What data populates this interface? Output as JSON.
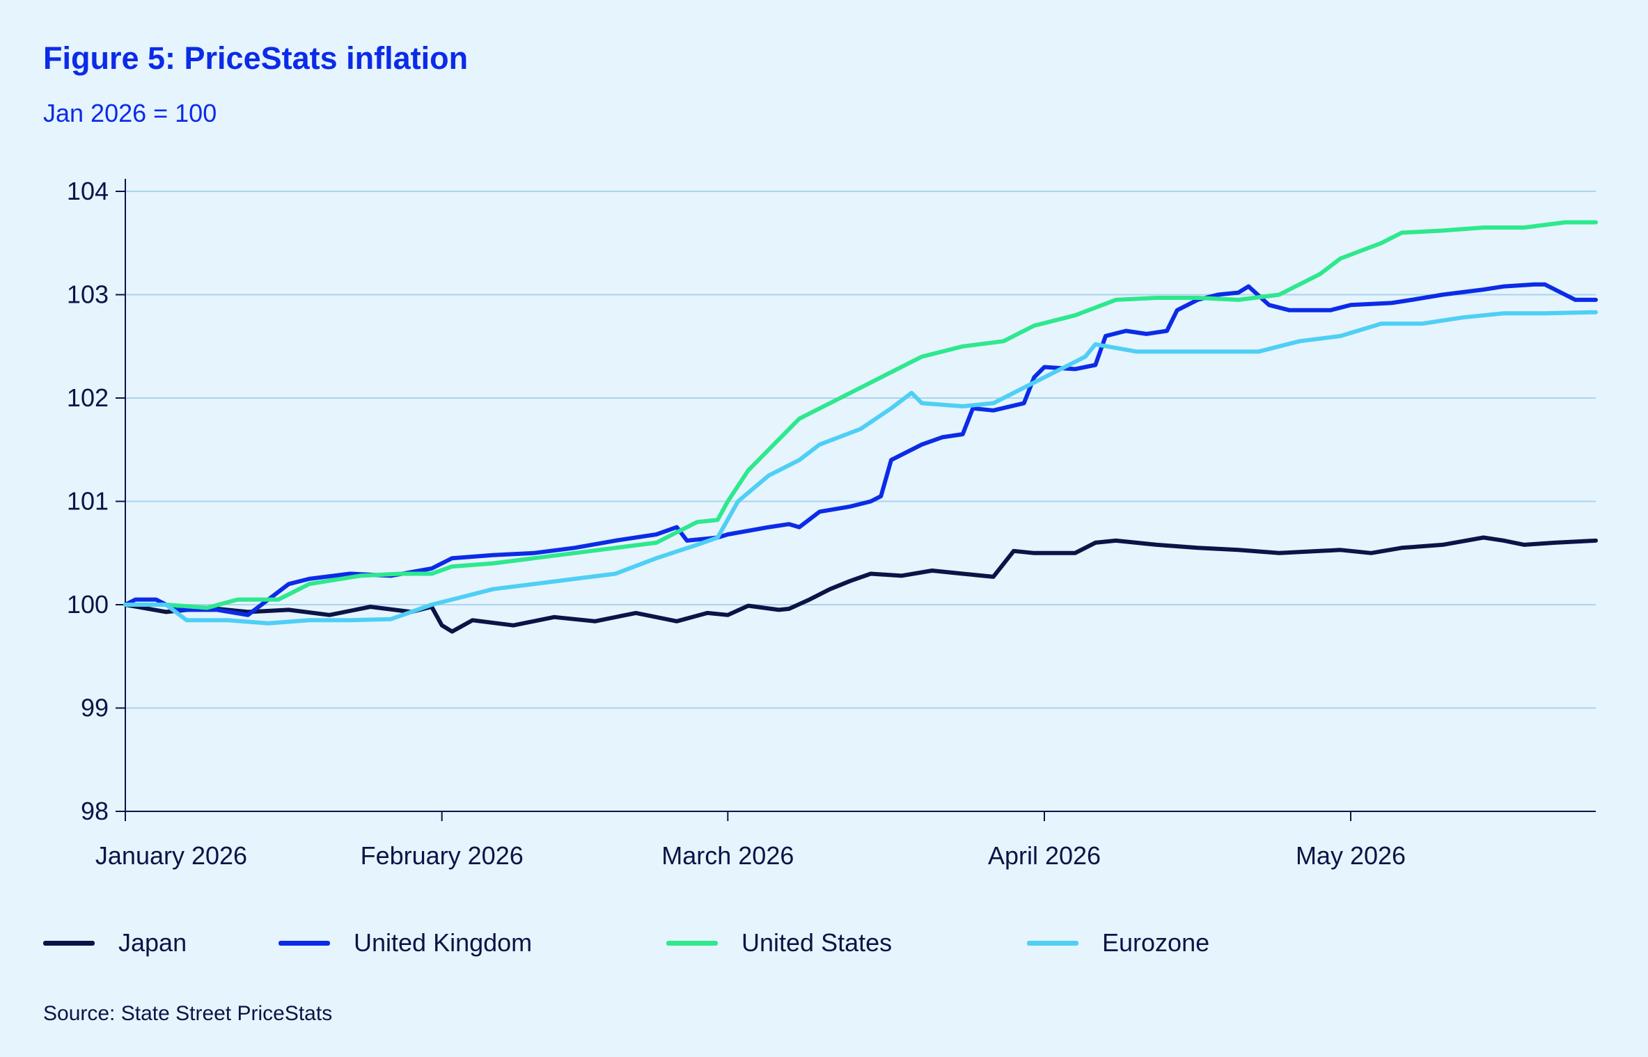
{
  "title": "Figure 5: PriceStats inflation",
  "subtitle": "Jan 2026 = 100",
  "source": "Source: State Street PriceStats",
  "colors": {
    "background": "#e6f4fd",
    "title": "#0b2be8",
    "text": "#0a1446",
    "grid": "#a9d4ee",
    "axis": "#0a1446"
  },
  "chart_data": {
    "type": "line",
    "title": "Figure 5: PriceStats inflation",
    "subtitle": "Jan 2026 = 100",
    "xlabel": "",
    "ylabel": "",
    "xlim": [
      "2026-01-01",
      "2026-05-25"
    ],
    "ylim": [
      98,
      104
    ],
    "yticks": [
      98,
      99,
      100,
      101,
      102,
      103,
      104
    ],
    "yticklabels": [
      "98",
      "99",
      "100",
      "101",
      "102",
      "103",
      "104"
    ],
    "xticks": [
      "2026-01-01",
      "2026-02-01",
      "2026-03-01",
      "2026-04-01",
      "2026-05-01"
    ],
    "xticklabels": [
      "January 2026",
      "February 2026",
      "March 2026",
      "April 2026",
      "May 2026"
    ],
    "grid": true,
    "legend_position": "bottom",
    "series": [
      {
        "name": "Japan",
        "color": "#0a1446",
        "points": [
          [
            "2026-01-01",
            100.0
          ],
          [
            "2026-01-05",
            99.93
          ],
          [
            "2026-01-09",
            99.97
          ],
          [
            "2026-01-13",
            99.93
          ],
          [
            "2026-01-17",
            99.95
          ],
          [
            "2026-01-21",
            99.9
          ],
          [
            "2026-01-25",
            99.98
          ],
          [
            "2026-01-29",
            99.93
          ],
          [
            "2026-01-31",
            99.98
          ],
          [
            "2026-02-01",
            99.8
          ],
          [
            "2026-02-02",
            99.74
          ],
          [
            "2026-02-04",
            99.85
          ],
          [
            "2026-02-08",
            99.8
          ],
          [
            "2026-02-12",
            99.88
          ],
          [
            "2026-02-16",
            99.84
          ],
          [
            "2026-02-20",
            99.92
          ],
          [
            "2026-02-24",
            99.84
          ],
          [
            "2026-02-27",
            99.92
          ],
          [
            "2026-03-01",
            99.9
          ],
          [
            "2026-03-03",
            99.99
          ],
          [
            "2026-03-06",
            99.95
          ],
          [
            "2026-03-07",
            99.96
          ],
          [
            "2026-03-09",
            100.05
          ],
          [
            "2026-03-11",
            100.15
          ],
          [
            "2026-03-13",
            100.23
          ],
          [
            "2026-03-15",
            100.3
          ],
          [
            "2026-03-18",
            100.28
          ],
          [
            "2026-03-21",
            100.33
          ],
          [
            "2026-03-24",
            100.3
          ],
          [
            "2026-03-27",
            100.27
          ],
          [
            "2026-03-29",
            100.52
          ],
          [
            "2026-03-31",
            100.5
          ],
          [
            "2026-04-04",
            100.5
          ],
          [
            "2026-04-06",
            100.6
          ],
          [
            "2026-04-08",
            100.62
          ],
          [
            "2026-04-12",
            100.58
          ],
          [
            "2026-04-16",
            100.55
          ],
          [
            "2026-04-20",
            100.53
          ],
          [
            "2026-04-24",
            100.5
          ],
          [
            "2026-04-28",
            100.52
          ],
          [
            "2026-04-30",
            100.53
          ],
          [
            "2026-05-03",
            100.5
          ],
          [
            "2026-05-06",
            100.55
          ],
          [
            "2026-05-10",
            100.58
          ],
          [
            "2026-05-14",
            100.65
          ],
          [
            "2026-05-16",
            100.62
          ],
          [
            "2026-05-18",
            100.58
          ],
          [
            "2026-05-21",
            100.6
          ],
          [
            "2026-05-25",
            100.62
          ]
        ]
      },
      {
        "name": "United Kingdom",
        "color": "#0b2be8",
        "points": [
          [
            "2026-01-01",
            100.0
          ],
          [
            "2026-01-02",
            100.05
          ],
          [
            "2026-01-04",
            100.05
          ],
          [
            "2026-01-06",
            99.95
          ],
          [
            "2026-01-10",
            99.95
          ],
          [
            "2026-01-13",
            99.9
          ],
          [
            "2026-01-15",
            100.05
          ],
          [
            "2026-01-17",
            100.2
          ],
          [
            "2026-01-19",
            100.25
          ],
          [
            "2026-01-23",
            100.3
          ],
          [
            "2026-01-27",
            100.28
          ],
          [
            "2026-01-31",
            100.35
          ],
          [
            "2026-02-01",
            100.4
          ],
          [
            "2026-02-02",
            100.45
          ],
          [
            "2026-02-06",
            100.48
          ],
          [
            "2026-02-10",
            100.5
          ],
          [
            "2026-02-14",
            100.55
          ],
          [
            "2026-02-18",
            100.62
          ],
          [
            "2026-02-22",
            100.68
          ],
          [
            "2026-02-24",
            100.75
          ],
          [
            "2026-02-25",
            100.62
          ],
          [
            "2026-02-28",
            100.65
          ],
          [
            "2026-03-01",
            100.68
          ],
          [
            "2026-03-05",
            100.75
          ],
          [
            "2026-03-07",
            100.78
          ],
          [
            "2026-03-08",
            100.75
          ],
          [
            "2026-03-10",
            100.9
          ],
          [
            "2026-03-13",
            100.95
          ],
          [
            "2026-03-15",
            101.0
          ],
          [
            "2026-03-16",
            101.05
          ],
          [
            "2026-03-17",
            101.4
          ],
          [
            "2026-03-20",
            101.55
          ],
          [
            "2026-03-22",
            101.62
          ],
          [
            "2026-03-24",
            101.65
          ],
          [
            "2026-03-25",
            101.9
          ],
          [
            "2026-03-27",
            101.88
          ],
          [
            "2026-03-30",
            101.95
          ],
          [
            "2026-03-31",
            102.2
          ],
          [
            "2026-04-01",
            102.3
          ],
          [
            "2026-04-04",
            102.28
          ],
          [
            "2026-04-06",
            102.32
          ],
          [
            "2026-04-07",
            102.6
          ],
          [
            "2026-04-09",
            102.65
          ],
          [
            "2026-04-11",
            102.62
          ],
          [
            "2026-04-13",
            102.65
          ],
          [
            "2026-04-14",
            102.85
          ],
          [
            "2026-04-16",
            102.95
          ],
          [
            "2026-04-18",
            103.0
          ],
          [
            "2026-04-20",
            103.02
          ],
          [
            "2026-04-21",
            103.08
          ],
          [
            "2026-04-23",
            102.9
          ],
          [
            "2026-04-25",
            102.85
          ],
          [
            "2026-04-29",
            102.85
          ],
          [
            "2026-05-01",
            102.9
          ],
          [
            "2026-05-05",
            102.92
          ],
          [
            "2026-05-07",
            102.95
          ],
          [
            "2026-05-10",
            103.0
          ],
          [
            "2026-05-14",
            103.05
          ],
          [
            "2026-05-16",
            103.08
          ],
          [
            "2026-05-19",
            103.1
          ],
          [
            "2026-05-20",
            103.1
          ],
          [
            "2026-05-22",
            103.0
          ],
          [
            "2026-05-23",
            102.95
          ],
          [
            "2026-05-25",
            102.95
          ]
        ]
      },
      {
        "name": "United States",
        "color": "#2ee88e",
        "points": [
          [
            "2026-01-01",
            100.0
          ],
          [
            "2026-01-05",
            100.0
          ],
          [
            "2026-01-09",
            99.97
          ],
          [
            "2026-01-12",
            100.05
          ],
          [
            "2026-01-16",
            100.05
          ],
          [
            "2026-01-19",
            100.2
          ],
          [
            "2026-01-24",
            100.28
          ],
          [
            "2026-01-28",
            100.3
          ],
          [
            "2026-01-31",
            100.3
          ],
          [
            "2026-02-02",
            100.37
          ],
          [
            "2026-02-06",
            100.4
          ],
          [
            "2026-02-10",
            100.45
          ],
          [
            "2026-02-14",
            100.5
          ],
          [
            "2026-02-18",
            100.55
          ],
          [
            "2026-02-22",
            100.6
          ],
          [
            "2026-02-24",
            100.7
          ],
          [
            "2026-02-26",
            100.8
          ],
          [
            "2026-02-28",
            100.82
          ],
          [
            "2026-03-01",
            101.0
          ],
          [
            "2026-03-03",
            101.3
          ],
          [
            "2026-03-05",
            101.5
          ],
          [
            "2026-03-08",
            101.8
          ],
          [
            "2026-03-12",
            102.0
          ],
          [
            "2026-03-16",
            102.2
          ],
          [
            "2026-03-20",
            102.4
          ],
          [
            "2026-03-24",
            102.5
          ],
          [
            "2026-03-28",
            102.55
          ],
          [
            "2026-03-31",
            102.7
          ],
          [
            "2026-04-04",
            102.8
          ],
          [
            "2026-04-08",
            102.95
          ],
          [
            "2026-04-12",
            102.97
          ],
          [
            "2026-04-16",
            102.97
          ],
          [
            "2026-04-20",
            102.95
          ],
          [
            "2026-04-24",
            103.0
          ],
          [
            "2026-04-28",
            103.2
          ],
          [
            "2026-04-30",
            103.35
          ],
          [
            "2026-05-04",
            103.5
          ],
          [
            "2026-05-06",
            103.6
          ],
          [
            "2026-05-10",
            103.62
          ],
          [
            "2026-05-14",
            103.65
          ],
          [
            "2026-05-18",
            103.65
          ],
          [
            "2026-05-22",
            103.7
          ],
          [
            "2026-05-25",
            103.7
          ]
        ]
      },
      {
        "name": "Eurozone",
        "color": "#4fcff5",
        "points": [
          [
            "2026-01-01",
            100.0
          ],
          [
            "2026-01-05",
            100.0
          ],
          [
            "2026-01-07",
            99.85
          ],
          [
            "2026-01-11",
            99.85
          ],
          [
            "2026-01-15",
            99.82
          ],
          [
            "2026-01-19",
            99.85
          ],
          [
            "2026-01-23",
            99.85
          ],
          [
            "2026-01-27",
            99.86
          ],
          [
            "2026-01-31",
            100.0
          ],
          [
            "2026-02-02",
            100.05
          ],
          [
            "2026-02-06",
            100.15
          ],
          [
            "2026-02-10",
            100.2
          ],
          [
            "2026-02-14",
            100.25
          ],
          [
            "2026-02-18",
            100.3
          ],
          [
            "2026-02-22",
            100.45
          ],
          [
            "2026-02-26",
            100.58
          ],
          [
            "2026-02-28",
            100.65
          ],
          [
            "2026-03-02",
            101.0
          ],
          [
            "2026-03-05",
            101.25
          ],
          [
            "2026-03-08",
            101.4
          ],
          [
            "2026-03-10",
            101.55
          ],
          [
            "2026-03-14",
            101.7
          ],
          [
            "2026-03-17",
            101.9
          ],
          [
            "2026-03-19",
            102.05
          ],
          [
            "2026-03-20",
            101.95
          ],
          [
            "2026-03-24",
            101.92
          ],
          [
            "2026-03-27",
            101.95
          ],
          [
            "2026-03-31",
            102.15
          ],
          [
            "2026-04-03",
            102.3
          ],
          [
            "2026-04-05",
            102.4
          ],
          [
            "2026-04-06",
            102.52
          ],
          [
            "2026-04-10",
            102.45
          ],
          [
            "2026-04-14",
            102.45
          ],
          [
            "2026-04-18",
            102.45
          ],
          [
            "2026-04-22",
            102.45
          ],
          [
            "2026-04-26",
            102.55
          ],
          [
            "2026-04-30",
            102.6
          ],
          [
            "2026-05-04",
            102.72
          ],
          [
            "2026-05-08",
            102.72
          ],
          [
            "2026-05-12",
            102.78
          ],
          [
            "2026-05-16",
            102.82
          ],
          [
            "2026-05-20",
            102.82
          ],
          [
            "2026-05-25",
            102.83
          ]
        ]
      }
    ]
  }
}
